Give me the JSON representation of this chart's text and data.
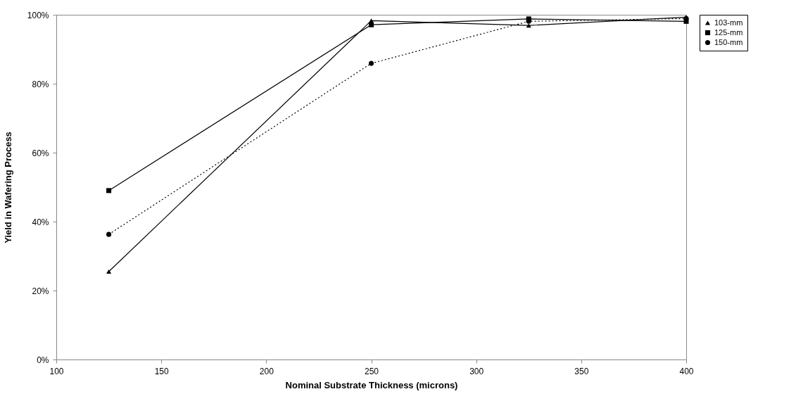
{
  "chart_data": {
    "type": "line",
    "xlabel": "Nominal Substrate Thickness  (microns)",
    "ylabel": "Yield in Wafering Process",
    "x": [
      125,
      250,
      325,
      400
    ],
    "series": [
      {
        "name": "103-mm",
        "color": "#000000",
        "marker": "triangle",
        "line_style": "solid",
        "values": [
          25.5,
          98.3,
          96.9,
          99.3
        ]
      },
      {
        "name": "125-mm",
        "color": "#000000",
        "marker": "square",
        "line_style": "solid",
        "values": [
          49.0,
          97.1,
          98.8,
          98.1
        ]
      },
      {
        "name": "150-mm",
        "color": "#000000",
        "marker": "circle",
        "line_style": "dotted",
        "values": [
          36.3,
          85.9,
          98.1,
          98.9
        ]
      }
    ],
    "xlim": [
      100,
      400
    ],
    "xticks": [
      100,
      150,
      200,
      250,
      300,
      350,
      400
    ],
    "ylim": [
      0,
      100
    ],
    "yticks": [
      {
        "value": 0,
        "label": "0%"
      },
      {
        "value": 20,
        "label": "20%"
      },
      {
        "value": 40,
        "label": "40%"
      },
      {
        "value": 60,
        "label": "60%"
      },
      {
        "value": 80,
        "label": "80%"
      },
      {
        "value": 100,
        "label": "100%"
      }
    ],
    "grid": false,
    "legend": "right"
  }
}
